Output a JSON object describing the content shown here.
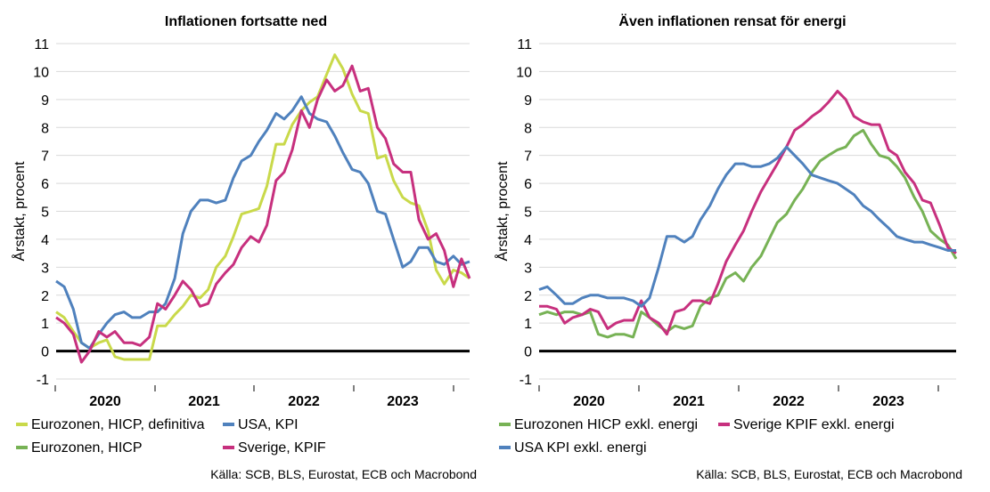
{
  "sources": [
    "Källa: SCB, BLS, Eurostat, ECB och Macrobond",
    "Källa: SCB, BLS, Eurostat, ECB och Macrobond"
  ],
  "chart_data": [
    {
      "type": "line",
      "title": "Inflationen fortsatte ned",
      "ylabel": "Årstakt, procent",
      "xlabel": "",
      "ylim": [
        -1,
        11
      ],
      "yticks": [
        -1,
        0,
        1,
        2,
        3,
        4,
        5,
        6,
        7,
        8,
        9,
        10,
        11
      ],
      "xlim": [
        2020.0,
        2024.08
      ],
      "year_labels": [
        "2020",
        "2021",
        "2022",
        "2023"
      ],
      "grid": "horizontal",
      "legend_placement": "bottom",
      "series": [
        {
          "name": "Eurozonen, HICP, definitiva",
          "color": "#c9d94a",
          "x": [
            2020.0,
            2020.08,
            2020.17,
            2020.25,
            2020.33,
            2020.42,
            2020.5,
            2020.58,
            2020.67,
            2020.75,
            2020.83,
            2020.92,
            2021.0,
            2021.08,
            2021.17,
            2021.25,
            2021.33,
            2021.42,
            2021.5,
            2021.58,
            2021.67,
            2021.75,
            2021.83,
            2021.92,
            2022.0,
            2022.08,
            2022.17,
            2022.25,
            2022.33,
            2022.42,
            2022.5,
            2022.58,
            2022.67,
            2022.75,
            2022.83,
            2022.92,
            2023.0,
            2023.08,
            2023.17,
            2023.25,
            2023.33,
            2023.42,
            2023.5,
            2023.58,
            2023.67,
            2023.75,
            2023.83,
            2023.92,
            2024.0,
            2024.08
          ],
          "y": [
            1.4,
            1.2,
            0.7,
            0.3,
            0.1,
            0.3,
            0.4,
            -0.2,
            -0.3,
            -0.3,
            -0.3,
            -0.3,
            0.9,
            0.9,
            1.3,
            1.6,
            2.0,
            1.9,
            2.2,
            3.0,
            3.4,
            4.1,
            4.9,
            5.0,
            5.1,
            5.9,
            7.4,
            7.4,
            8.1,
            8.6,
            8.9,
            9.1,
            9.9,
            10.6,
            10.1,
            9.2,
            8.6,
            8.5,
            6.9,
            7.0,
            6.1,
            5.5,
            5.3,
            5.2,
            4.3,
            2.9,
            2.4,
            2.9,
            2.8,
            2.6
          ]
        },
        {
          "name": "USA, KPI",
          "color": "#4f81bd",
          "x": [
            2020.0,
            2020.08,
            2020.17,
            2020.25,
            2020.33,
            2020.42,
            2020.5,
            2020.58,
            2020.67,
            2020.75,
            2020.83,
            2020.92,
            2021.0,
            2021.08,
            2021.17,
            2021.25,
            2021.33,
            2021.42,
            2021.5,
            2021.58,
            2021.67,
            2021.75,
            2021.83,
            2021.92,
            2022.0,
            2022.08,
            2022.17,
            2022.25,
            2022.33,
            2022.42,
            2022.5,
            2022.58,
            2022.67,
            2022.75,
            2022.83,
            2022.92,
            2023.0,
            2023.08,
            2023.17,
            2023.25,
            2023.33,
            2023.42,
            2023.5,
            2023.58,
            2023.67,
            2023.75,
            2023.83,
            2023.92,
            2024.0,
            2024.08
          ],
          "y": [
            2.5,
            2.3,
            1.5,
            0.3,
            0.1,
            0.6,
            1.0,
            1.3,
            1.4,
            1.2,
            1.2,
            1.4,
            1.4,
            1.7,
            2.6,
            4.2,
            5.0,
            5.4,
            5.4,
            5.3,
            5.4,
            6.2,
            6.8,
            7.0,
            7.5,
            7.9,
            8.5,
            8.3,
            8.6,
            9.1,
            8.5,
            8.3,
            8.2,
            7.7,
            7.1,
            6.5,
            6.4,
            6.0,
            5.0,
            4.9,
            4.0,
            3.0,
            3.2,
            3.7,
            3.7,
            3.2,
            3.1,
            3.4,
            3.1,
            3.2
          ]
        },
        {
          "name": "Eurozonen, HICP",
          "color": "#77b255",
          "x": [],
          "y": []
        },
        {
          "name": "Sverige, KPIF",
          "color": "#c7307e",
          "x": [
            2020.0,
            2020.08,
            2020.17,
            2020.25,
            2020.33,
            2020.42,
            2020.5,
            2020.58,
            2020.67,
            2020.75,
            2020.83,
            2020.92,
            2021.0,
            2021.08,
            2021.17,
            2021.25,
            2021.33,
            2021.42,
            2021.5,
            2021.58,
            2021.67,
            2021.75,
            2021.83,
            2021.92,
            2022.0,
            2022.08,
            2022.17,
            2022.25,
            2022.33,
            2022.42,
            2022.5,
            2022.58,
            2022.67,
            2022.75,
            2022.83,
            2022.92,
            2023.0,
            2023.08,
            2023.17,
            2023.25,
            2023.33,
            2023.42,
            2023.5,
            2023.58,
            2023.67,
            2023.75,
            2023.83,
            2023.92,
            2024.0,
            2024.08
          ],
          "y": [
            1.2,
            1.0,
            0.6,
            -0.4,
            0.0,
            0.7,
            0.5,
            0.7,
            0.3,
            0.3,
            0.2,
            0.5,
            1.7,
            1.5,
            2.0,
            2.5,
            2.2,
            1.6,
            1.7,
            2.4,
            2.8,
            3.1,
            3.7,
            4.1,
            3.9,
            4.5,
            6.1,
            6.4,
            7.2,
            8.6,
            8.0,
            9.0,
            9.7,
            9.3,
            9.5,
            10.2,
            9.3,
            9.4,
            8.0,
            7.6,
            6.7,
            6.4,
            6.4,
            4.7,
            4.0,
            4.2,
            3.6,
            2.3,
            3.3,
            2.6
          ]
        }
      ]
    },
    {
      "type": "line",
      "title": "Även inflationen rensat för energi",
      "ylabel": "Årstakt, procent",
      "xlabel": "",
      "ylim": [
        -1,
        11
      ],
      "yticks": [
        -1,
        0,
        1,
        2,
        3,
        4,
        5,
        6,
        7,
        8,
        9,
        10,
        11
      ],
      "xlim": [
        2020.0,
        2024.08
      ],
      "year_labels": [
        "2020",
        "2021",
        "2022",
        "2023"
      ],
      "grid": "horizontal",
      "legend_placement": "bottom",
      "series": [
        {
          "name": "Eurozonen HICP exkl. energi",
          "color": "#77b255",
          "x": [
            2020.0,
            2020.08,
            2020.17,
            2020.25,
            2020.33,
            2020.42,
            2020.5,
            2020.58,
            2020.67,
            2020.75,
            2020.83,
            2020.92,
            2021.0,
            2021.08,
            2021.17,
            2021.25,
            2021.33,
            2021.42,
            2021.5,
            2021.58,
            2021.67,
            2021.75,
            2021.83,
            2021.92,
            2022.0,
            2022.08,
            2022.17,
            2022.25,
            2022.33,
            2022.42,
            2022.5,
            2022.58,
            2022.67,
            2022.75,
            2022.83,
            2022.92,
            2023.0,
            2023.08,
            2023.17,
            2023.25,
            2023.33,
            2023.42,
            2023.5,
            2023.58,
            2023.67,
            2023.75,
            2023.83,
            2023.92,
            2024.0,
            2024.08
          ],
          "y": [
            1.3,
            1.4,
            1.3,
            1.4,
            1.4,
            1.3,
            1.4,
            0.6,
            0.5,
            0.6,
            0.6,
            0.5,
            1.4,
            1.2,
            0.9,
            0.7,
            0.9,
            0.8,
            0.9,
            1.6,
            1.9,
            2.0,
            2.6,
            2.8,
            2.5,
            3.0,
            3.4,
            4.0,
            4.6,
            4.9,
            5.4,
            5.8,
            6.4,
            6.8,
            7.0,
            7.2,
            7.3,
            7.7,
            7.9,
            7.4,
            7.0,
            6.9,
            6.6,
            6.2,
            5.5,
            5.0,
            4.3,
            4.0,
            3.8,
            3.3
          ]
        },
        {
          "name": "Sverige KPIF exkl. energi",
          "color": "#c7307e",
          "x": [
            2020.0,
            2020.08,
            2020.17,
            2020.25,
            2020.33,
            2020.42,
            2020.5,
            2020.58,
            2020.67,
            2020.75,
            2020.83,
            2020.92,
            2021.0,
            2021.08,
            2021.17,
            2021.25,
            2021.33,
            2021.42,
            2021.5,
            2021.58,
            2021.67,
            2021.75,
            2021.83,
            2021.92,
            2022.0,
            2022.08,
            2022.17,
            2022.25,
            2022.33,
            2022.42,
            2022.5,
            2022.58,
            2022.67,
            2022.75,
            2022.83,
            2022.92,
            2023.0,
            2023.08,
            2023.17,
            2023.25,
            2023.33,
            2023.42,
            2023.5,
            2023.58,
            2023.67,
            2023.75,
            2023.83,
            2023.92,
            2024.0,
            2024.08
          ],
          "y": [
            1.6,
            1.6,
            1.5,
            1.0,
            1.2,
            1.3,
            1.5,
            1.4,
            0.8,
            1.0,
            1.1,
            1.1,
            1.8,
            1.2,
            1.0,
            0.6,
            1.4,
            1.5,
            1.8,
            1.8,
            1.7,
            2.4,
            3.2,
            3.8,
            4.3,
            5.0,
            5.7,
            6.2,
            6.7,
            7.3,
            7.9,
            8.1,
            8.4,
            8.6,
            8.9,
            9.3,
            9.0,
            8.4,
            8.2,
            8.1,
            8.1,
            7.2,
            7.0,
            6.4,
            6.0,
            5.4,
            5.3,
            4.5,
            3.7,
            3.5
          ]
        },
        {
          "name": "USA KPI exkl. energi",
          "color": "#4f81bd",
          "x": [
            2020.0,
            2020.08,
            2020.17,
            2020.25,
            2020.33,
            2020.42,
            2020.5,
            2020.58,
            2020.67,
            2020.75,
            2020.83,
            2020.92,
            2021.0,
            2021.08,
            2021.17,
            2021.25,
            2021.33,
            2021.42,
            2021.5,
            2021.58,
            2021.67,
            2021.75,
            2021.83,
            2021.92,
            2022.0,
            2022.08,
            2022.17,
            2022.25,
            2022.33,
            2022.42,
            2022.5,
            2022.58,
            2022.67,
            2022.75,
            2022.83,
            2022.92,
            2023.0,
            2023.08,
            2023.17,
            2023.25,
            2023.33,
            2023.42,
            2023.5,
            2023.58,
            2023.67,
            2023.75,
            2023.83,
            2023.92,
            2024.0,
            2024.08
          ],
          "y": [
            2.2,
            2.3,
            2.0,
            1.7,
            1.7,
            1.9,
            2.0,
            2.0,
            1.9,
            1.9,
            1.9,
            1.8,
            1.6,
            1.9,
            3.0,
            4.1,
            4.1,
            3.9,
            4.1,
            4.7,
            5.2,
            5.8,
            6.3,
            6.7,
            6.7,
            6.6,
            6.6,
            6.7,
            6.9,
            7.3,
            7.0,
            6.7,
            6.3,
            6.2,
            6.1,
            6.0,
            5.8,
            5.6,
            5.2,
            5.0,
            4.7,
            4.4,
            4.1,
            4.0,
            3.9,
            3.9,
            3.8,
            3.7,
            3.6,
            3.6
          ]
        }
      ]
    }
  ]
}
